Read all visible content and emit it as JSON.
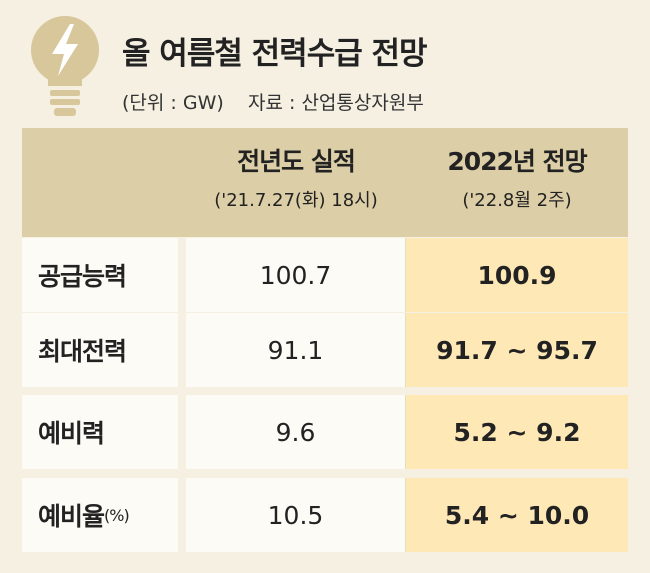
{
  "header": {
    "title": "올 여름철 전력수급 전망",
    "unit": "(단위 : GW)",
    "source": "자료 : 산업통상자원부"
  },
  "table": {
    "columns": [
      {
        "title": "전년도 실적",
        "subtitle": "('21.7.27(화) 18시)"
      },
      {
        "title": "2022년 전망",
        "subtitle": "('22.8월 2주)"
      }
    ],
    "rows": [
      {
        "label": "공급능력",
        "values": [
          "100.7",
          "100.9"
        ]
      },
      {
        "label": "최대전력",
        "values": [
          "91.1",
          "91.7 ~ 95.7"
        ]
      },
      {
        "label": "예비력",
        "values": [
          "9.6",
          "5.2 ~ 9.2"
        ]
      },
      {
        "label": "예비율",
        "label_unit": "(%)",
        "values": [
          "10.5",
          "5.4 ~ 10.0"
        ]
      }
    ]
  }
}
